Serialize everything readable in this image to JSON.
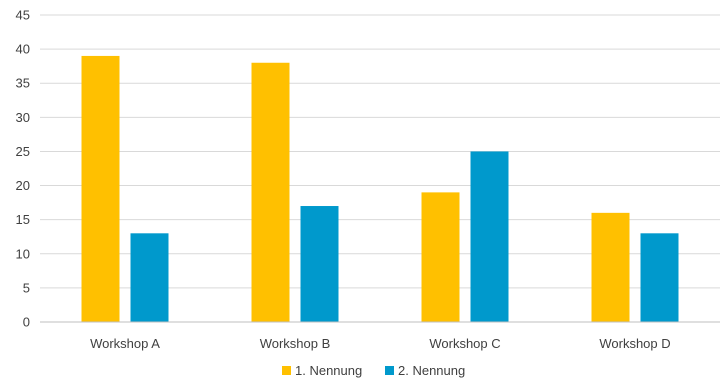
{
  "chart_data": {
    "type": "bar",
    "title": "",
    "xlabel": "",
    "ylabel": "",
    "categories": [
      "Workshop A",
      "Workshop B",
      "Workshop C",
      "Workshop D"
    ],
    "ylim": [
      0,
      45
    ],
    "yticks": [
      0,
      5,
      10,
      15,
      20,
      25,
      30,
      35,
      40,
      45
    ],
    "grid": true,
    "legend_position": "bottom",
    "series": [
      {
        "name": "1. Nennung",
        "color": "#FFC000",
        "values": [
          39,
          38,
          19,
          16
        ]
      },
      {
        "name": "2. Nennung",
        "color": "#0099CC",
        "values": [
          13,
          17,
          25,
          13
        ]
      }
    ]
  }
}
